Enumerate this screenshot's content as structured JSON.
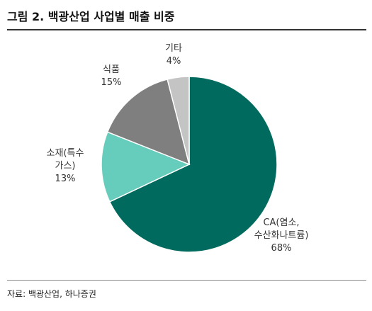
{
  "title": "그림 2. 백광산업 사업별 매출 비중",
  "source": "자료: 백광산업, 하나증권",
  "chart_data": {
    "type": "pie",
    "title": "그림 2. 백광산업 사업별 매출 비중",
    "start_angle_deg": 0,
    "direction": "clockwise",
    "slices": [
      {
        "label": "CA(염소,\n수산화나트륨)",
        "value": 68,
        "display": "68%",
        "color": "#006a5e"
      },
      {
        "label": "소재(특수\n가스)",
        "value": 13,
        "display": "13%",
        "color": "#66ccbb"
      },
      {
        "label": "식품",
        "value": 15,
        "display": "15%",
        "color": "#7f7f7f"
      },
      {
        "label": "기타",
        "value": 4,
        "display": "4%",
        "color": "#c4c4c4"
      }
    ]
  }
}
